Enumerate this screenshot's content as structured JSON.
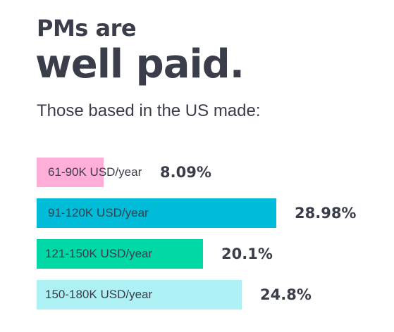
{
  "header": {
    "kicker": "PMs are",
    "headline": "well paid.",
    "subtitle": "Those based in the US made:"
  },
  "chart_data": {
    "type": "bar",
    "orientation": "horizontal",
    "categories": [
      "61-90K USD/year",
      "91-120K USD/year",
      "121-150K USD/year",
      "150-180K USD/year"
    ],
    "values": [
      8.09,
      28.98,
      20.1,
      24.8
    ],
    "value_labels": [
      "8.09%",
      "28.98%",
      "20.1%",
      "24.8%"
    ],
    "colors": [
      "#ffafd7",
      "#00bcd8",
      "#00d9a5",
      "#aef1f4"
    ],
    "xlim": [
      0,
      28.98
    ],
    "grid": false,
    "legend": "none"
  }
}
